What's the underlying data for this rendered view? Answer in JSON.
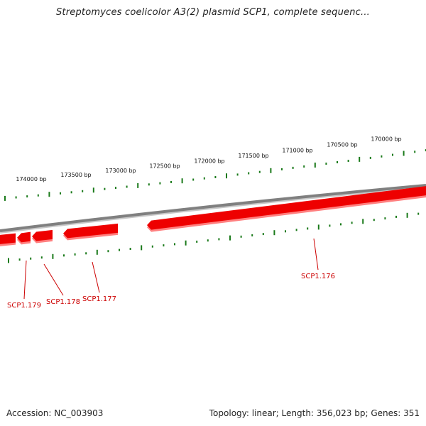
{
  "title": "Streptomyces coelicolor A3(2) plasmid SCP1, complete sequenc...",
  "footer": {
    "accession": "Accession: NC_003903",
    "summary": "Topology: linear; Length: 356,023 bp; Genes: 351"
  },
  "colors": {
    "gene": "#ee0000",
    "gene_shadow": "#ff8080",
    "backbone": "#808080",
    "tick": "#1a7a1a",
    "gene_label": "#cc0000",
    "tick_label": "#111111"
  },
  "scale_labels": [
    "174000 bp",
    "173500 bp",
    "173000 bp",
    "172500 bp",
    "172000 bp",
    "171500 bp",
    "171000 bp",
    "170500 bp",
    "170000 bp"
  ],
  "genes": [
    {
      "name": "SCP1.179"
    },
    {
      "name": "SCP1.178"
    },
    {
      "name": "SCP1.177"
    },
    {
      "name": "SCP1.176"
    }
  ]
}
